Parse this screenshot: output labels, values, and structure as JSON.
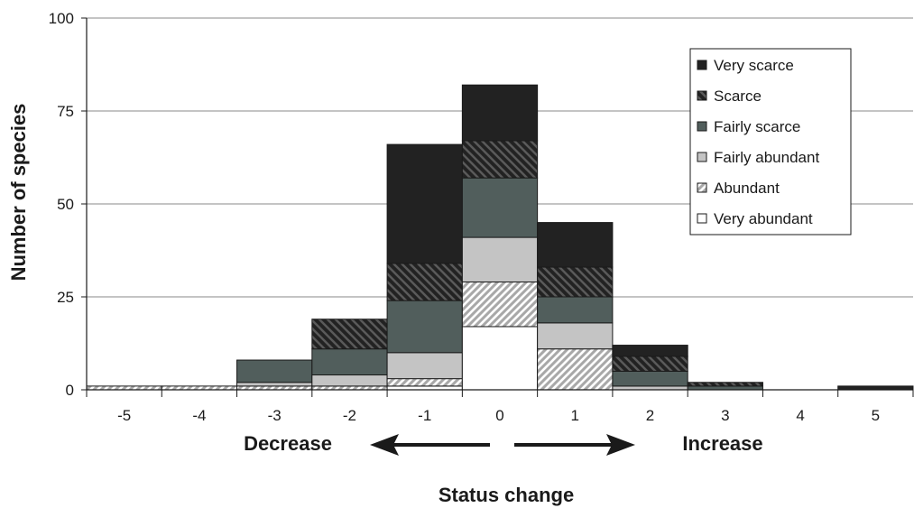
{
  "chart_data": {
    "type": "bar",
    "stacked": true,
    "categories": [
      "-5",
      "-4",
      "-3",
      "-2",
      "-1",
      "0",
      "1",
      "2",
      "3",
      "4",
      "5"
    ],
    "series": [
      {
        "name": "Very abundant",
        "color": "#ffffff",
        "pattern": "none",
        "values": [
          0,
          0,
          0,
          0,
          1,
          17,
          0,
          0,
          0,
          0,
          0
        ]
      },
      {
        "name": "Abundant",
        "color": "#bdbdbd",
        "pattern": "diagonal-light",
        "values": [
          1,
          1,
          1,
          1,
          2,
          12,
          11,
          0,
          0,
          0,
          0
        ]
      },
      {
        "name": "Fairly abundant",
        "color": "#c4c4c4",
        "pattern": "none",
        "values": [
          0,
          0,
          1,
          3,
          7,
          12,
          7,
          1,
          0,
          0,
          0
        ]
      },
      {
        "name": "Fairly scarce",
        "color": "#515e5c",
        "pattern": "none",
        "values": [
          0,
          0,
          6,
          7,
          14,
          16,
          7,
          4,
          1,
          0,
          0
        ]
      },
      {
        "name": "Scarce",
        "color": "#333333",
        "pattern": "diagonal-dark",
        "values": [
          0,
          0,
          0,
          8,
          10,
          10,
          8,
          4,
          1,
          0,
          0
        ]
      },
      {
        "name": "Very scarce",
        "color": "#222222",
        "pattern": "none",
        "values": [
          0,
          0,
          0,
          0,
          32,
          15,
          12,
          3,
          0,
          0,
          1
        ]
      }
    ],
    "xlabel": "Status change",
    "ylabel": "Number of species",
    "ylim": [
      0,
      100
    ],
    "yticks": [
      "0",
      "25",
      "50",
      "75",
      "100"
    ],
    "grid": true,
    "legend_position": "top-right",
    "legend_order": [
      "Very scarce",
      "Scarce",
      "Fairly scarce",
      "Fairly abundant",
      "Abundant",
      "Very abundant"
    ],
    "annotations": {
      "decrease": "Decrease",
      "increase": "Increase"
    }
  }
}
